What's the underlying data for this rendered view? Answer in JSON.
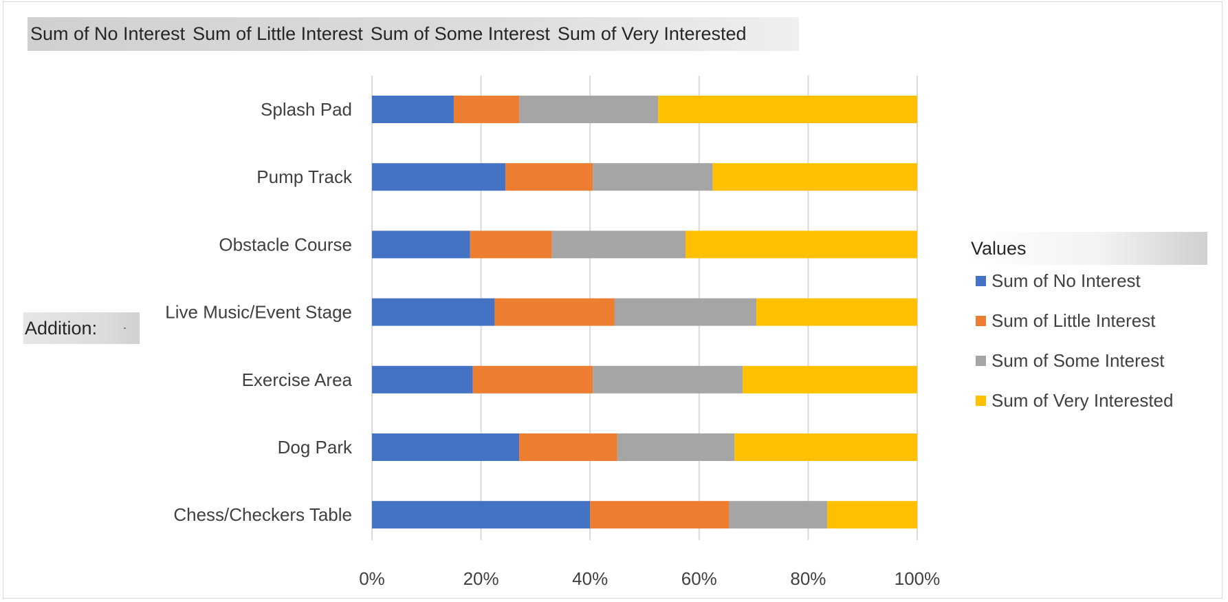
{
  "pivot": {
    "series_fields": [
      "Sum of No Interest",
      "Sum of Little Interest",
      "Sum of Some Interest",
      "Sum of Very Interested"
    ],
    "values_button": "Values",
    "axis_field_button": "Addition:"
  },
  "colors": {
    "Sum of No Interest": "#4472c4",
    "Sum of Little Interest": "#ed7d31",
    "Sum of Some Interest": "#a5a5a5",
    "Sum of Very Interested": "#ffc000",
    "gridline": "#d9d9d9",
    "text": "#404040"
  },
  "chart_data": {
    "type": "bar",
    "orientation": "horizontal",
    "stacking": "100% stacked",
    "categories": [
      "Splash Pad",
      "Pump Track",
      "Obstacle Course",
      "Live Music/Event Stage",
      "Exercise Area",
      "Dog Park",
      "Chess/Checkers Table"
    ],
    "series": [
      {
        "name": "Sum of No Interest",
        "values": [
          15,
          24.5,
          18,
          22.5,
          18.5,
          27,
          40
        ]
      },
      {
        "name": "Sum of Little Interest",
        "values": [
          12,
          16,
          15,
          22,
          22,
          18,
          25.5
        ]
      },
      {
        "name": "Sum of Some Interest",
        "values": [
          25.5,
          22,
          24.5,
          26,
          27.5,
          21.5,
          18
        ]
      },
      {
        "name": "Sum of Very Interested",
        "values": [
          47.5,
          37.5,
          42.5,
          29.5,
          32,
          33.5,
          16.5
        ]
      }
    ],
    "x_ticks": [
      "0%",
      "20%",
      "40%",
      "60%",
      "80%",
      "100%"
    ],
    "xlim": [
      0,
      100
    ],
    "grid": true,
    "legend_title": "Values",
    "legend_position": "right"
  }
}
